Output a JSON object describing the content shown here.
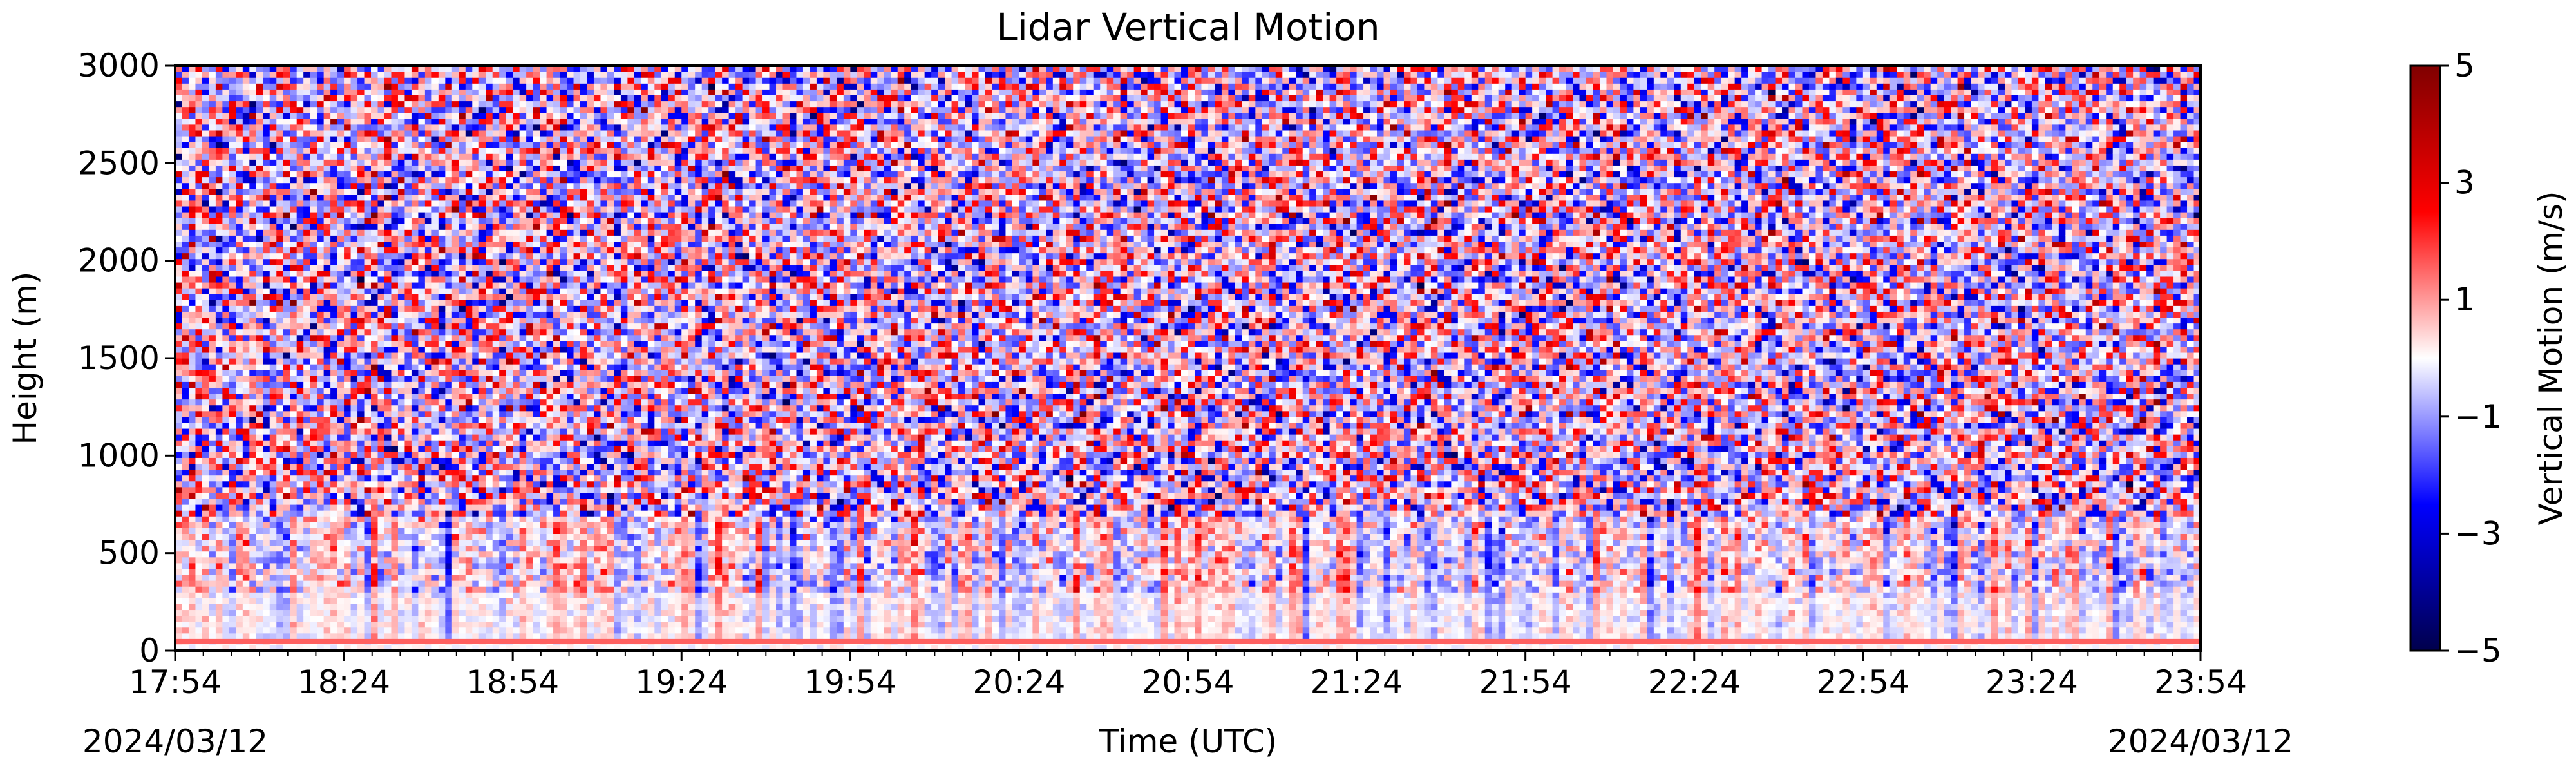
{
  "chart_data": {
    "type": "heatmap",
    "title": "Lidar Vertical Motion",
    "xlabel": "Time (UTC)",
    "ylabel": "Height (m)",
    "x_tick_labels": [
      "17:54",
      "18:24",
      "18:54",
      "19:24",
      "19:54",
      "20:24",
      "20:54",
      "21:24",
      "21:54",
      "22:24",
      "22:54",
      "23:24",
      "23:54"
    ],
    "x_start_date": "2024/03/12",
    "x_end_date": "2024/03/12",
    "x_range": [
      "17:54",
      "23:54"
    ],
    "y_ticks": [
      0,
      500,
      1000,
      1500,
      2000,
      2500,
      3000
    ],
    "ylim": [
      0,
      3000
    ],
    "colorbar": {
      "label": "Vertical Motion (m/s)",
      "ticks": [
        5,
        3,
        1,
        -1,
        -3,
        -5
      ],
      "tick_labels": [
        "5",
        "3",
        "1",
        "−1",
        "−3",
        "−5"
      ],
      "range": [
        -5,
        5
      ],
      "colormap": "seismic"
    },
    "colors": {
      "negative_extreme": "#00004c",
      "negative": "#0000ff",
      "zero": "#ffffff",
      "positive": "#ff0000",
      "positive_extreme": "#800000"
    },
    "grid": false
  }
}
